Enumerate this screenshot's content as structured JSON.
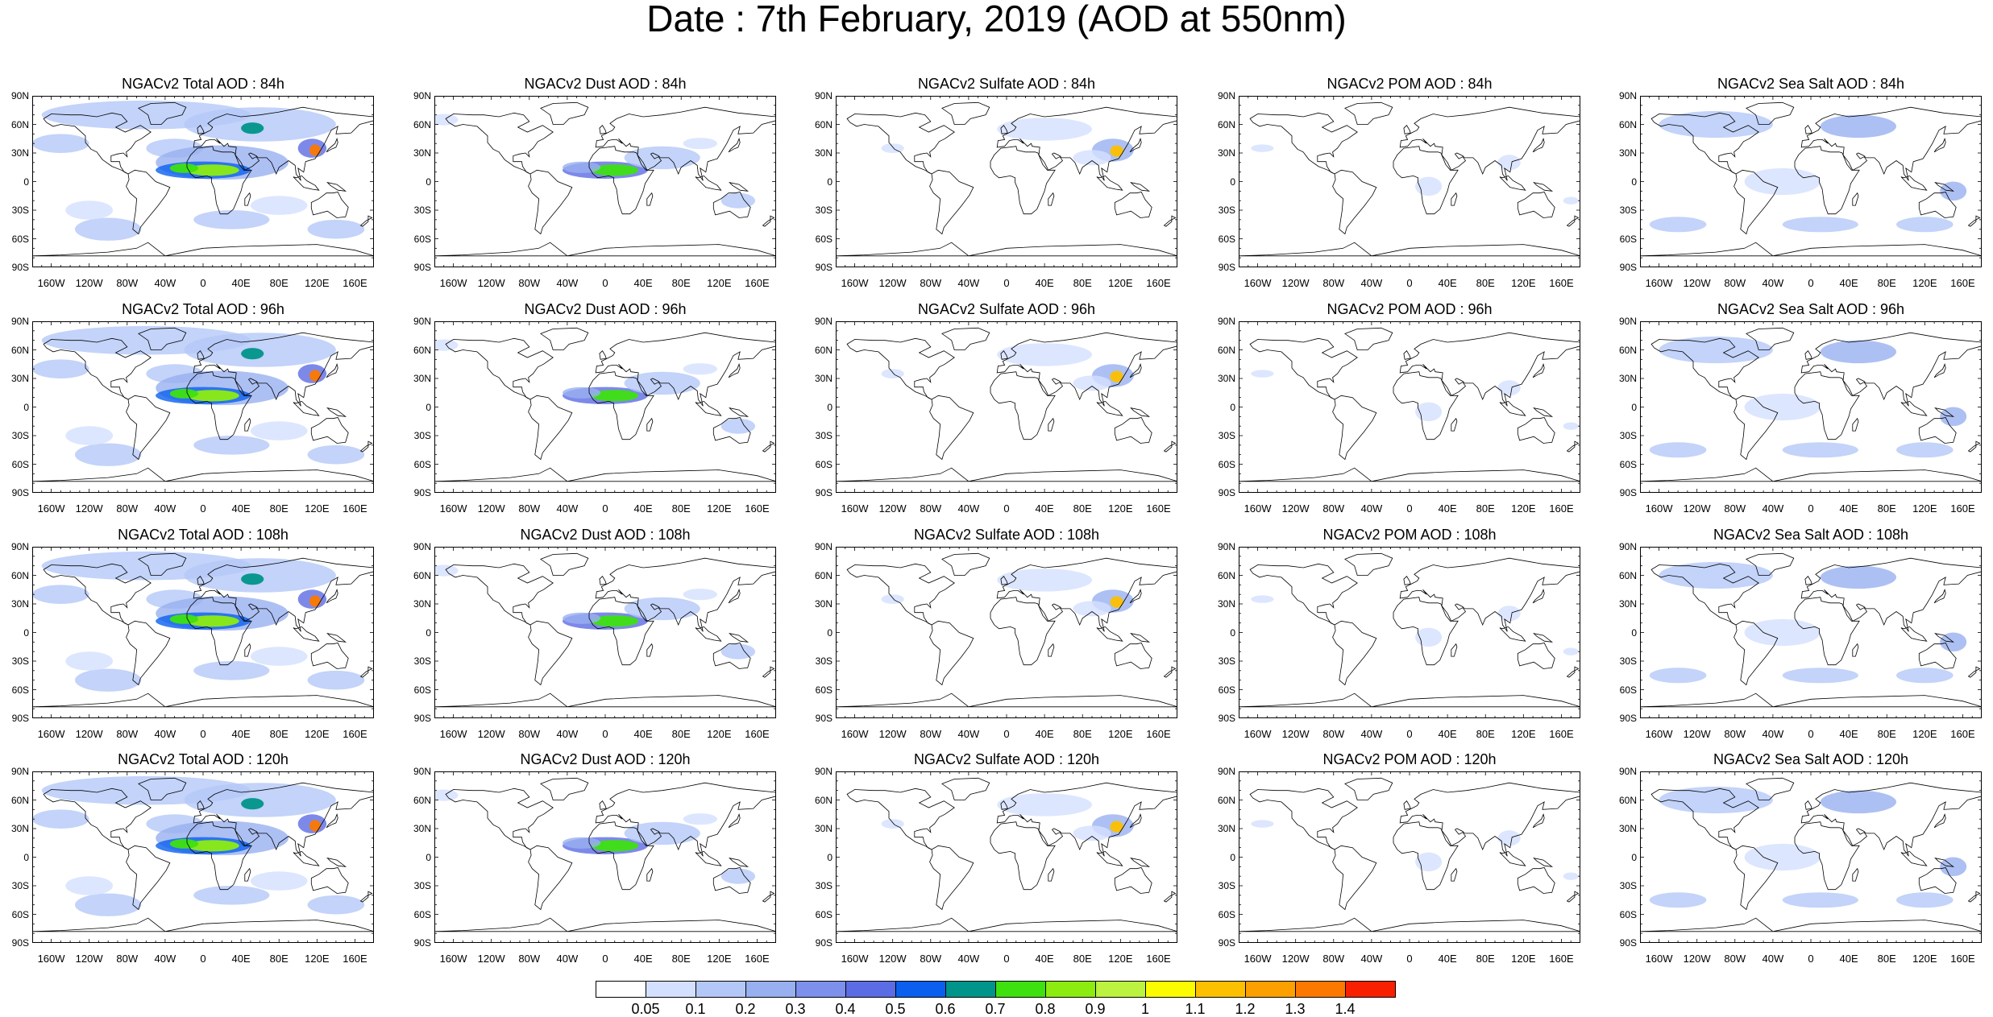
{
  "title": "Date : 7th February, 2019 (AOD at 550nm)",
  "panel_titles": [
    [
      "NGACv2 Total AOD : 84h",
      "NGACv2 Dust AOD : 84h",
      "NGACv2 Sulfate AOD : 84h",
      "NGACv2 POM AOD : 84h",
      "NGACv2 Sea Salt AOD : 84h"
    ],
    [
      "NGACv2 Total AOD : 96h",
      "NGACv2 Dust AOD : 96h",
      "NGACv2 Sulfate AOD : 96h",
      "NGACv2 POM AOD : 96h",
      "NGACv2 Sea Salt AOD : 96h"
    ],
    [
      "NGACv2 Total AOD : 108h",
      "NGACv2 Dust AOD : 108h",
      "NGACv2 Sulfate AOD : 108h",
      "NGACv2 POM AOD : 108h",
      "NGACv2 Sea Salt AOD : 108h"
    ],
    [
      "NGACv2 Total AOD : 120h",
      "NGACv2 Dust AOD : 120h",
      "NGACv2 Sulfate AOD : 120h",
      "NGACv2 POM AOD : 120h",
      "NGACv2 Sea Salt  AOD : 120h"
    ]
  ],
  "lat_ticks": [
    "90N",
    "60N",
    "30N",
    "0",
    "30S",
    "60S",
    "90S"
  ],
  "lon_ticks": [
    "160W",
    "120W",
    "80W",
    "40W",
    "0",
    "40E",
    "80E",
    "120E",
    "160E"
  ],
  "colorbar": {
    "labels": [
      "0.05",
      "0.1",
      "0.2",
      "0.3",
      "0.4",
      "0.5",
      "0.6",
      "0.7",
      "0.8",
      "0.9",
      "1",
      "1.1",
      "1.2",
      "1.3",
      "1.4"
    ],
    "colors": [
      "#ffffff",
      "#d4e0ff",
      "#b4c8f8",
      "#98b0f0",
      "#7c90ec",
      "#5c6ce4",
      "#0a5fef",
      "#00948a",
      "#3ee010",
      "#8cec10",
      "#bcf240",
      "#fcfc00",
      "#fcc000",
      "#fca000",
      "#fc7800",
      "#f82000"
    ]
  },
  "colors": {
    "land_outline": "#000000",
    "ocean_background": "#ffffff",
    "low_aod_blue": "#b4c8f8",
    "mid_aod_blue": "#5c6ce4",
    "high_aod_red": "#f82000"
  }
}
